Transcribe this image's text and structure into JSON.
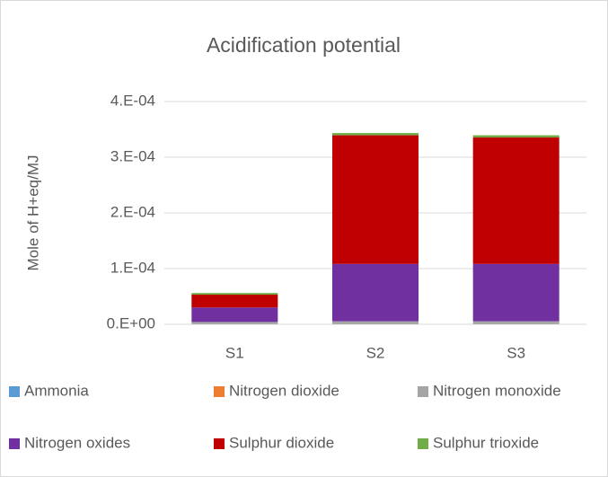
{
  "chart_data": {
    "type": "bar",
    "stacked": true,
    "title": "Acidification potential",
    "y_label": "Mole of H+eq/MJ",
    "categories": [
      "S1",
      "S2",
      "S3"
    ],
    "series": [
      {
        "name": "Ammonia",
        "color": "#5b9bd5",
        "values": [
          1e-07,
          2e-07,
          2e-07
        ]
      },
      {
        "name": "Nitrogen dioxide",
        "color": "#ed7d31",
        "values": [
          1e-07,
          2e-07,
          2e-07
        ]
      },
      {
        "name": "Nitrogen monoxide",
        "color": "#a5a5a5",
        "values": [
          4e-06,
          5e-06,
          5e-06
        ]
      },
      {
        "name": "Nitrogen oxides",
        "color": "#7030a0",
        "values": [
          2.6e-05,
          0.000103,
          0.000103
        ]
      },
      {
        "name": "Sulphur dioxide",
        "color": "#c00000",
        "values": [
          2.3e-05,
          0.000231,
          0.000227
        ]
      },
      {
        "name": "Sulphur trioxide",
        "color": "#70ad47",
        "values": [
          3e-06,
          4e-06,
          4e-06
        ]
      }
    ],
    "ylim": [
      0,
      0.0004
    ],
    "yticks": [
      {
        "value": 0,
        "label": "0.E+00"
      },
      {
        "value": 0.0001,
        "label": "1.E-04"
      },
      {
        "value": 0.0002,
        "label": "2.E-04"
      },
      {
        "value": 0.0003,
        "label": "3.E-04"
      },
      {
        "value": 0.0004,
        "label": "4.E-04"
      }
    ],
    "grid": true,
    "legend": "bottom"
  }
}
